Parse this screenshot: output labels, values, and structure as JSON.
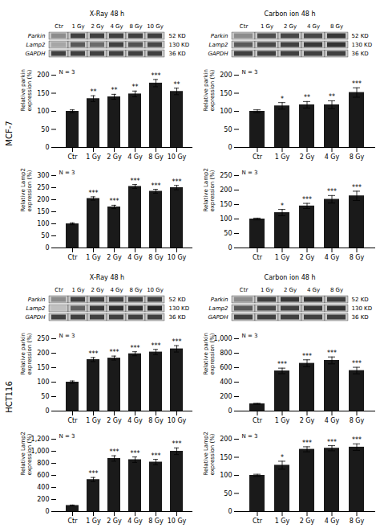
{
  "chart_data": [
    {
      "type": "blot",
      "title": "X-Ray 48 h",
      "annotation": "MCF-7",
      "categories": [
        "Ctr",
        "1 Gy",
        "2 Gy",
        "4 Gy",
        "8 Gy",
        "10 Gy"
      ],
      "rows": [
        "Parkin",
        "Lamp2",
        "GAPDH"
      ],
      "right_labels": [
        "52 KD",
        "130 KD",
        "36 KD"
      ],
      "intensities": [
        [
          0.55,
          0.25,
          0.25,
          0.25,
          0.25,
          0.25
        ],
        [
          0.65,
          0.35,
          0.42,
          0.25,
          0.32,
          0.28
        ],
        [
          0.25,
          0.25,
          0.25,
          0.25,
          0.25,
          0.25
        ]
      ]
    },
    {
      "type": "blot",
      "title": "Carbon ion 48 h",
      "categories": [
        "Ctr",
        "1 Gy",
        "2 Gy",
        "4 Gy",
        "8 Gy"
      ],
      "rows": [
        "Parkin",
        "Lamp2",
        "GAPDH"
      ],
      "right_labels": [
        "52 KD",
        "130 KD",
        "36 KD"
      ],
      "intensities": [
        [
          0.55,
          0.3,
          0.28,
          0.28,
          0.22
        ],
        [
          0.35,
          0.28,
          0.25,
          0.22,
          0.2
        ],
        [
          0.25,
          0.25,
          0.25,
          0.25,
          0.25
        ]
      ]
    },
    {
      "type": "bar",
      "ylabel": "Relative parkin\nexpression (%)",
      "annotation": "N = 3",
      "color": "#1a1a1a",
      "categories": [
        "Ctr",
        "1 Gy",
        "2 Gy",
        "4 Gy",
        "8 Gy",
        "10 Gy"
      ],
      "values": [
        100,
        135,
        140,
        148,
        178,
        155
      ],
      "errors": [
        4,
        8,
        7,
        8,
        10,
        9
      ],
      "stars": [
        null,
        "**",
        "**",
        "**",
        "***",
        "**"
      ],
      "ylim": [
        0,
        200
      ],
      "yticks": [
        0,
        50,
        100,
        150,
        200
      ]
    },
    {
      "type": "bar",
      "ylabel": "Relative parkin\nexpression (%)",
      "annotation": "N = 3",
      "color": "#1a1a1a",
      "categories": [
        "Ctr",
        "1 Gy",
        "2 Gy",
        "4 Gy",
        "8 Gy"
      ],
      "values": [
        100,
        115,
        118,
        118,
        152
      ],
      "errors": [
        4,
        9,
        9,
        11,
        13
      ],
      "stars": [
        null,
        "*",
        "**",
        "**",
        "***"
      ],
      "ylim": [
        0,
        200
      ],
      "yticks": [
        0,
        50,
        100,
        150,
        200
      ]
    },
    {
      "type": "bar",
      "ylabel": "Relative Lamp2\nexpression (%)",
      "annotation": "N = 3",
      "color": "#1a1a1a",
      "categories": [
        "Ctr",
        "1 Gy",
        "2 Gy",
        "4 Gy",
        "8 Gy",
        "10 Gy"
      ],
      "values": [
        100,
        205,
        170,
        255,
        235,
        250
      ],
      "errors": [
        4,
        7,
        7,
        8,
        8,
        9
      ],
      "stars": [
        null,
        "***",
        "***",
        "***",
        "***",
        "***"
      ],
      "ylim": [
        0,
        300
      ],
      "yticks": [
        0,
        50,
        100,
        150,
        200,
        250,
        300
      ]
    },
    {
      "type": "bar",
      "ylabel": "Relative Lamp2\nexpression (%)",
      "annotation": "N = 3",
      "color": "#1a1a1a",
      "categories": [
        "Ctr",
        "1 Gy",
        "2 Gy",
        "4 Gy",
        "8 Gy"
      ],
      "values": [
        100,
        122,
        145,
        168,
        180
      ],
      "errors": [
        3,
        11,
        9,
        13,
        16
      ],
      "stars": [
        null,
        "*",
        "***",
        "***",
        "***"
      ],
      "ylim": [
        0,
        250
      ],
      "yticks": [
        0,
        50,
        100,
        150,
        200,
        250
      ]
    },
    {
      "type": "blot",
      "title": "X-Ray 48 h",
      "annotation": "HCT116",
      "categories": [
        "Ctr",
        "1 Gy",
        "2 Gy",
        "4 Gy",
        "8 Gy",
        "10 Gy"
      ],
      "rows": [
        "Parkin",
        "Lamp2",
        "GAPDH"
      ],
      "right_labels": [
        "52 KD",
        "130 KD",
        "36 KD"
      ],
      "intensities": [
        [
          0.55,
          0.25,
          0.25,
          0.25,
          0.25,
          0.25
        ],
        [
          0.75,
          0.38,
          0.22,
          0.18,
          0.18,
          0.15
        ],
        [
          0.25,
          0.25,
          0.25,
          0.25,
          0.25,
          0.25
        ]
      ]
    },
    {
      "type": "blot",
      "title": "Carbon ion 48 h",
      "categories": [
        "Ctr",
        "1 Gy",
        "2 Gy",
        "4 Gy",
        "8 Gy"
      ],
      "rows": [
        "Parkin",
        "Lamp2",
        "GAPDH"
      ],
      "right_labels": [
        "52 KD",
        "130 KD",
        "36 KD"
      ],
      "intensities": [
        [
          0.55,
          0.25,
          0.22,
          0.2,
          0.25
        ],
        [
          0.35,
          0.28,
          0.25,
          0.22,
          0.2
        ],
        [
          0.25,
          0.25,
          0.25,
          0.25,
          0.25
        ]
      ]
    },
    {
      "type": "bar",
      "ylabel": "Relative parkin\nexpression (%)",
      "annotation": "N = 3",
      "color": "#1a1a1a",
      "categories": [
        "Ctr",
        "1 Gy",
        "2 Gy",
        "4 Gy",
        "8 Gy",
        "10 Gy"
      ],
      "values": [
        100,
        178,
        183,
        198,
        204,
        215
      ],
      "errors": [
        4,
        7,
        7,
        7,
        9,
        11
      ],
      "stars": [
        null,
        "***",
        "***",
        "***",
        "***",
        "***"
      ],
      "ylim": [
        0,
        250
      ],
      "yticks": [
        0,
        50,
        100,
        150,
        200,
        250
      ]
    },
    {
      "type": "bar",
      "ylabel": "Relative parkin\nexpression (%)",
      "annotation": "N = 3",
      "color": "#1a1a1a",
      "categories": [
        "Ctr",
        "1 Gy",
        "2 Gy",
        "4 Gy",
        "8 Gy"
      ],
      "values": [
        100,
        555,
        660,
        700,
        560
      ],
      "errors": [
        8,
        38,
        48,
        48,
        45
      ],
      "stars": [
        null,
        "***",
        "***",
        "***",
        "***"
      ],
      "ylim": [
        0,
        1000
      ],
      "yticks": [
        0,
        200,
        400,
        600,
        800,
        1000
      ]
    },
    {
      "type": "bar",
      "ylabel": "Relative Lamp2\nexpression (%)",
      "annotation": "N = 3",
      "color": "#1a1a1a",
      "categories": [
        "Ctr",
        "1 Gy",
        "2 Gy",
        "4 Gy",
        "8 Gy",
        "10 Gy"
      ],
      "values": [
        100,
        530,
        880,
        860,
        820,
        1000
      ],
      "errors": [
        8,
        35,
        45,
        45,
        45,
        55
      ],
      "stars": [
        null,
        "***",
        "***",
        "***",
        "***",
        "***"
      ],
      "ylim": [
        0,
        1200
      ],
      "yticks": [
        0,
        200,
        400,
        600,
        800,
        1000,
        1200
      ]
    },
    {
      "type": "bar",
      "ylabel": "Relative Lamp2\nexpression (%)",
      "annotation": "N = 3",
      "color": "#1a1a1a",
      "categories": [
        "Ctr",
        "1 Gy",
        "2 Gy",
        "4 Gy",
        "8 Gy"
      ],
      "values": [
        100,
        128,
        172,
        175,
        178
      ],
      "errors": [
        3,
        11,
        7,
        7,
        9
      ],
      "stars": [
        null,
        "*",
        "***",
        "***",
        "***"
      ],
      "ylim": [
        0,
        200
      ],
      "yticks": [
        0,
        50,
        100,
        150,
        200
      ]
    }
  ]
}
